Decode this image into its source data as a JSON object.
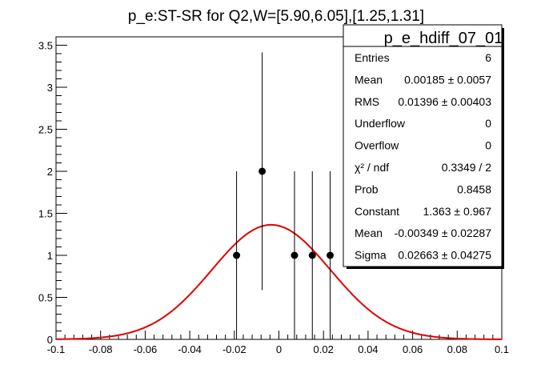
{
  "chart_data": {
    "type": "scatter",
    "title": "p_e:ST-SR for Q2,W=[5.90,6.05],[1.25,1.31]",
    "xlabel": "",
    "ylabel": "",
    "xlim": [
      -0.1,
      0.1
    ],
    "ylim": [
      0,
      3.6
    ],
    "grid": false,
    "x_ticks": [
      -0.1,
      -0.08,
      -0.06,
      -0.04,
      -0.02,
      0,
      0.02,
      0.04,
      0.06,
      0.08,
      0.1
    ],
    "x_tick_labels": [
      "-0.1",
      "-0.08",
      "-0.06",
      "-0.04",
      "-0.02",
      "0",
      "0.02",
      "0.04",
      "0.06",
      "0.08",
      "0.1"
    ],
    "y_ticks": [
      0,
      0.5,
      1,
      1.5,
      2,
      2.5,
      3,
      3.5
    ],
    "y_tick_labels": [
      "0",
      "0.5",
      "1",
      "1.5",
      "2",
      "2.5",
      "3",
      "3.5"
    ],
    "points": [
      {
        "x": -0.019,
        "y": 1,
        "err": 1.0
      },
      {
        "x": -0.0075,
        "y": 2,
        "err": 1.414
      },
      {
        "x": 0.007,
        "y": 1,
        "err": 1.0
      },
      {
        "x": 0.015,
        "y": 1,
        "err": 1.0
      },
      {
        "x": 0.023,
        "y": 1,
        "err": 1.0
      }
    ],
    "fit": {
      "function": "gaus",
      "constant": 1.363,
      "mean": -0.00349,
      "sigma": 0.02663,
      "color": "#e00000"
    },
    "stats_box": {
      "title": "p_e_hdiff_07_01",
      "position": "top-right",
      "rows": [
        {
          "label": "Entries",
          "value": "6"
        },
        {
          "label": "Mean",
          "value": "0.00185 ± 0.0057"
        },
        {
          "label": "RMS",
          "value": "0.01396 ± 0.00403"
        },
        {
          "label": "Underflow",
          "value": "0"
        },
        {
          "label": "Overflow",
          "value": "0"
        },
        {
          "label": "χ² / ndf",
          "value": "0.3349 / 2"
        },
        {
          "label": "Prob",
          "value": "0.8458"
        },
        {
          "label": "Constant",
          "value": "1.363 ± 0.967"
        },
        {
          "label": "Mean",
          "value": "-0.00349 ± 0.02287"
        },
        {
          "label": "Sigma",
          "value": "0.02663 ± 0.04275"
        }
      ]
    }
  }
}
